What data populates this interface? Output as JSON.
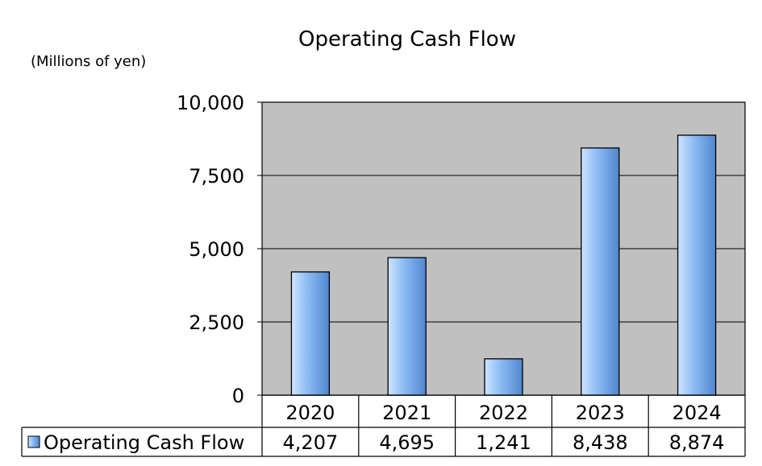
{
  "chart_data": {
    "type": "bar",
    "title": "Operating Cash Flow",
    "unit_label": "(Millions of yen)",
    "categories": [
      "2020",
      "2021",
      "2022",
      "2023",
      "2024"
    ],
    "series": [
      {
        "name": "Operating Cash Flow",
        "values": [
          4207,
          4695,
          1241,
          8438,
          8874
        ]
      }
    ],
    "value_labels": [
      "4,207",
      "4,695",
      "1,241",
      "8,438",
      "8,874"
    ],
    "ylim": [
      0,
      10000
    ],
    "yticks": [
      0,
      2500,
      5000,
      7500,
      10000
    ],
    "ytick_labels": [
      "0",
      "2,500",
      "5,000",
      "7,500",
      "10,000"
    ],
    "grid": true,
    "legend": "data-table-left",
    "colors": {
      "plot_bg": "#c0c0c0",
      "bar_light": "#cfe4ff",
      "bar_mid": "#8fbef5",
      "bar_dark": "#4f86cf",
      "bar_stroke": "#000000",
      "grid": "#000000"
    }
  }
}
